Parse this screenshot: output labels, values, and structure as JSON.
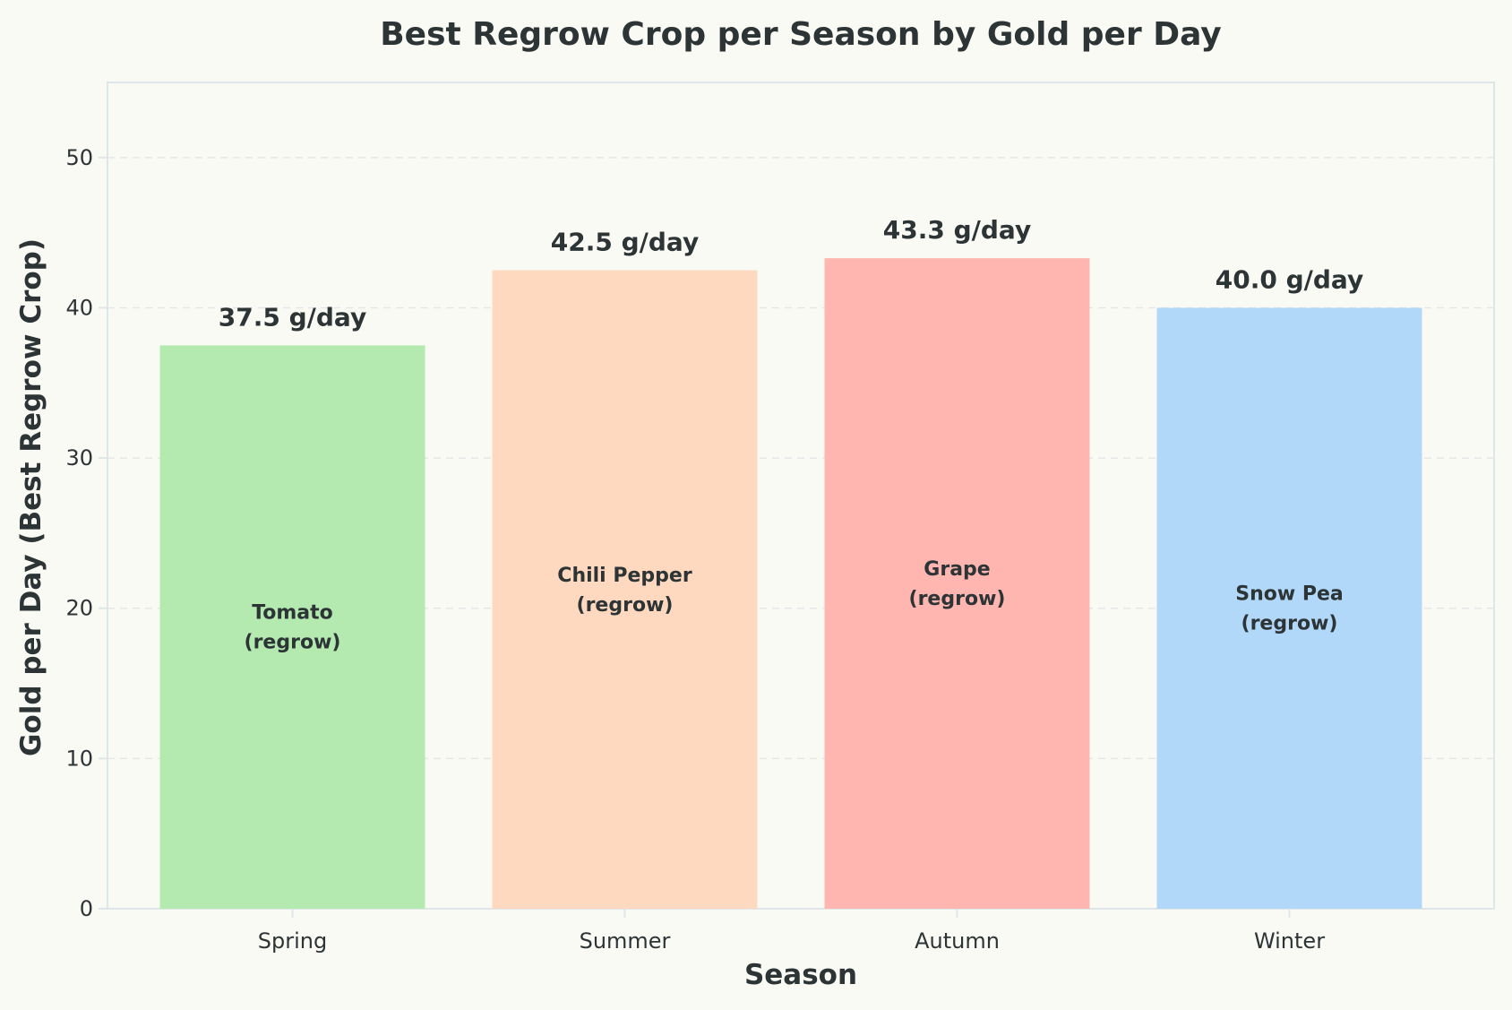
{
  "chart_data": {
    "type": "bar",
    "title": "Best Regrow Crop per Season by Gold per Day",
    "xlabel": "Season",
    "ylabel": "Gold per Day (Best Regrow Crop)",
    "categories": [
      "Spring",
      "Summer",
      "Autumn",
      "Winter"
    ],
    "values": [
      37.5,
      42.5,
      43.3,
      40.0
    ],
    "value_labels": [
      "37.5 g/day",
      "42.5 g/day",
      "43.3 g/day",
      "40.0 g/day"
    ],
    "crop_labels": [
      [
        "Tomato",
        "(regrow)"
      ],
      [
        "Chili Pepper",
        "(regrow)"
      ],
      [
        "Grape",
        "(regrow)"
      ],
      [
        "Snow Pea",
        "(regrow)"
      ]
    ],
    "colors": [
      "#b4eab0",
      "#ffd9bf",
      "#ffb6b1",
      "#b1d8f8"
    ],
    "ylim": [
      0,
      55
    ],
    "yticks": [
      0,
      10,
      20,
      30,
      40,
      50
    ],
    "grid": true,
    "grid_axis": "y"
  }
}
